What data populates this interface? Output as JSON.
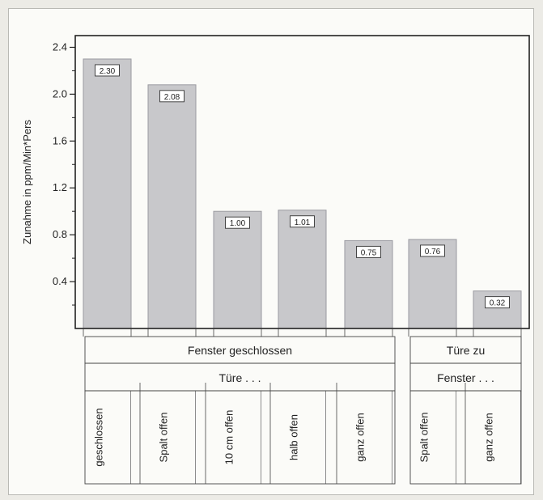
{
  "chart_data": {
    "type": "bar",
    "ylabel": "Zunahme in ppm/Min*Pers",
    "ylim": [
      0,
      2.5
    ],
    "yticks": [
      "0.4",
      "0.8",
      "1.2",
      "1.6",
      "2.0",
      "2.4"
    ],
    "categories": [
      "geschlossen",
      "Spalt offen",
      "10 cm offen",
      "halb offen",
      "ganz offen",
      "Spalt offen",
      "ganz offen"
    ],
    "values": [
      2.3,
      2.08,
      1.0,
      1.01,
      0.75,
      0.76,
      0.32
    ],
    "data_labels": [
      "2.30",
      "2.08",
      "1.00",
      "1.01",
      "0.75",
      "0.76",
      "0.32"
    ],
    "groups": [
      {
        "label": "Fenster geschlossen",
        "sublabel": "Türe . . .",
        "bars": [
          0,
          1,
          2,
          3,
          4
        ]
      },
      {
        "label": "Türe zu",
        "sublabel": "Fenster . . .",
        "bars": [
          5,
          6
        ]
      }
    ],
    "bar_color": "#c8c8cb",
    "grid": false
  }
}
